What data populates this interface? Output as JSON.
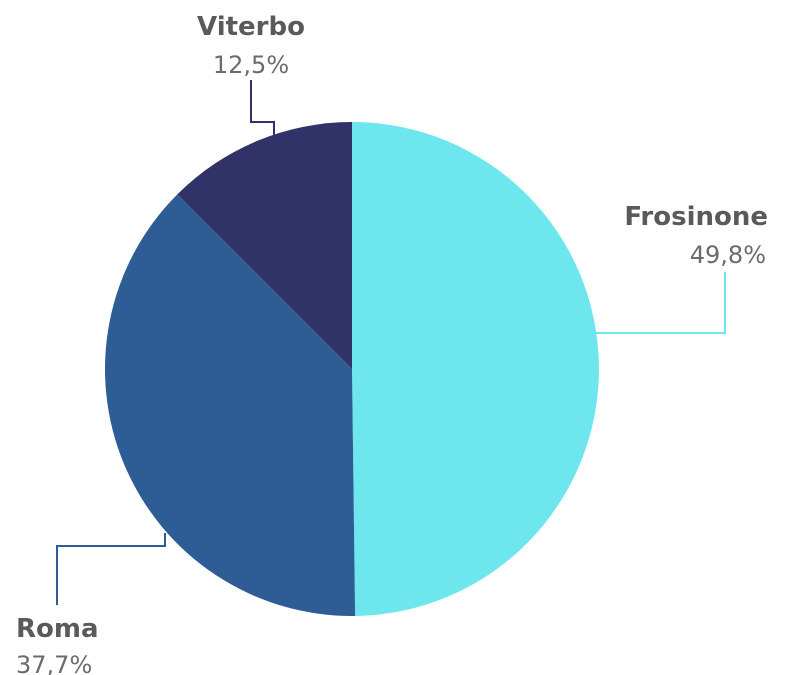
{
  "chart_data": {
    "type": "pie",
    "categories": [
      "Frosinone",
      "Roma",
      "Viterbo"
    ],
    "values": [
      49.8,
      37.7,
      12.5
    ],
    "value_labels": [
      "49,8%",
      "37,7%",
      "12,5%"
    ],
    "colors": [
      "#6DE6EE",
      "#2E5C95",
      "#313268"
    ],
    "start_angle": "12 o'clock",
    "direction": "clockwise",
    "legend": "none",
    "labels": "outside with leader lines"
  }
}
